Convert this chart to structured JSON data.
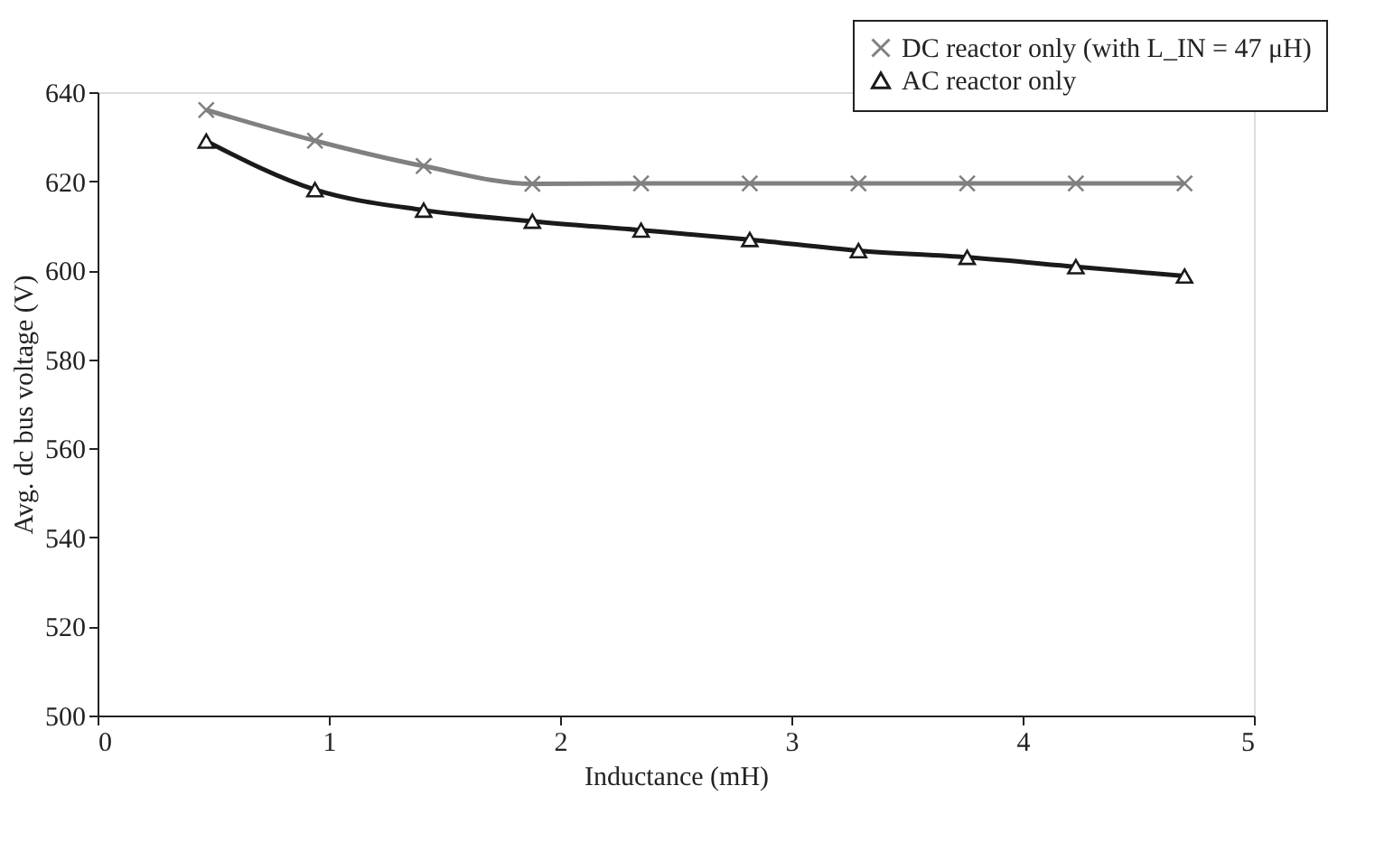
{
  "chart_data": {
    "type": "line",
    "xlabel": "Inductance (mH)",
    "ylabel": "Avg. dc bus voltage (V)",
    "x": [
      0.47,
      0.94,
      1.41,
      1.88,
      2.35,
      2.82,
      3.29,
      3.76,
      4.23,
      4.7
    ],
    "series": [
      {
        "name": "DC reactor only (with L_IN = 47 μH)",
        "color": "#808080",
        "marker": "cross",
        "values": [
          636,
          629.1,
          623.4,
          619.4,
          619.5,
          619.5,
          619.5,
          619.5,
          619.5,
          619.5
        ]
      },
      {
        "name": "AC reactor only",
        "color": "#1a1a1a",
        "marker": "triangle",
        "values": [
          629,
          618.1,
          613.5,
          611,
          609,
          606.9,
          604.4,
          602.9,
          600.8,
          598.7
        ]
      }
    ],
    "xlim": [
      0,
      5
    ],
    "xticks": [
      0,
      1,
      2,
      3,
      4,
      5
    ],
    "ylim": [
      500,
      640
    ],
    "yticks": [
      500,
      520,
      540,
      560,
      580,
      600,
      620,
      640
    ],
    "grid": false,
    "legend": "top right",
    "line_style": "solid"
  }
}
